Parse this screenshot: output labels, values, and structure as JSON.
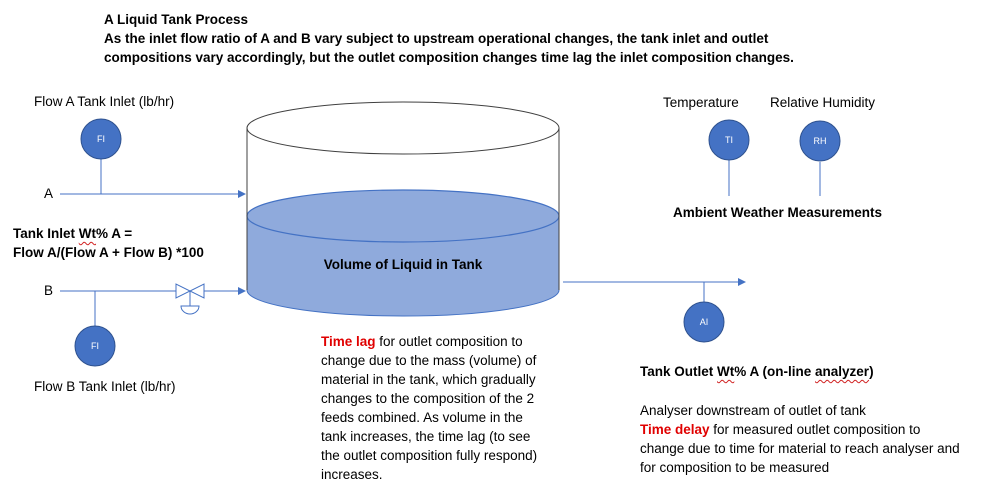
{
  "header": {
    "title": "A Liquid Tank Process",
    "line1": "As the inlet flow ratio of A and B vary subject to upstream operational changes, the tank inlet and outlet",
    "line2": "compositions vary accordingly, but the outlet composition changes time lag the inlet composition changes."
  },
  "flows": {
    "flow_a_label": "Flow A Tank Inlet (lb/hr)",
    "flow_b_label": "Flow B Tank Inlet (lb/hr)",
    "stream_a": "A",
    "stream_b": "B"
  },
  "inlet_formula": {
    "line1_prefix": "Tank Inlet ",
    "line1_wt": "Wt",
    "line1_suffix": "% A =",
    "line2": "Flow A/(Flow A + Flow B) *100"
  },
  "tank": {
    "label": "Volume of Liquid in Tank"
  },
  "instruments": {
    "fi_a": "FI",
    "fi_b": "FI",
    "ti": "TI",
    "rh": "RH",
    "ai": "AI"
  },
  "weather": {
    "temperature": "Temperature",
    "humidity": "Relative Humidity",
    "caption": "Ambient Weather Measurements"
  },
  "time_lag_note": {
    "highlight": "Time lag",
    "line1_rest": " for outlet composition to",
    "line2": "change due to the mass (volume) of",
    "line3": "material in the tank, which gradually",
    "line4": "changes to the composition of the 2",
    "line5": "feeds combined. As volume in the",
    "line6": "tank increases, the time lag (to see",
    "line7": "the outlet composition fully respond)",
    "line8": "increases."
  },
  "outlet": {
    "title_prefix": "Tank Outlet ",
    "title_wt": "Wt",
    "title_mid": "% A (on-line ",
    "title_analyzer": "analyzer",
    "title_suffix": ")",
    "line1": "Analyser downstream of outlet of tank",
    "delay_highlight": "Time delay",
    "line2_rest": " for measured outlet composition to",
    "line3": "change due to time for material to reach analyser and",
    "line4": "for composition to be measured"
  },
  "colors": {
    "instrument": "#4472c4",
    "liquid": "#8faadc",
    "line": "#4472c4",
    "highlight": "#e00000"
  }
}
